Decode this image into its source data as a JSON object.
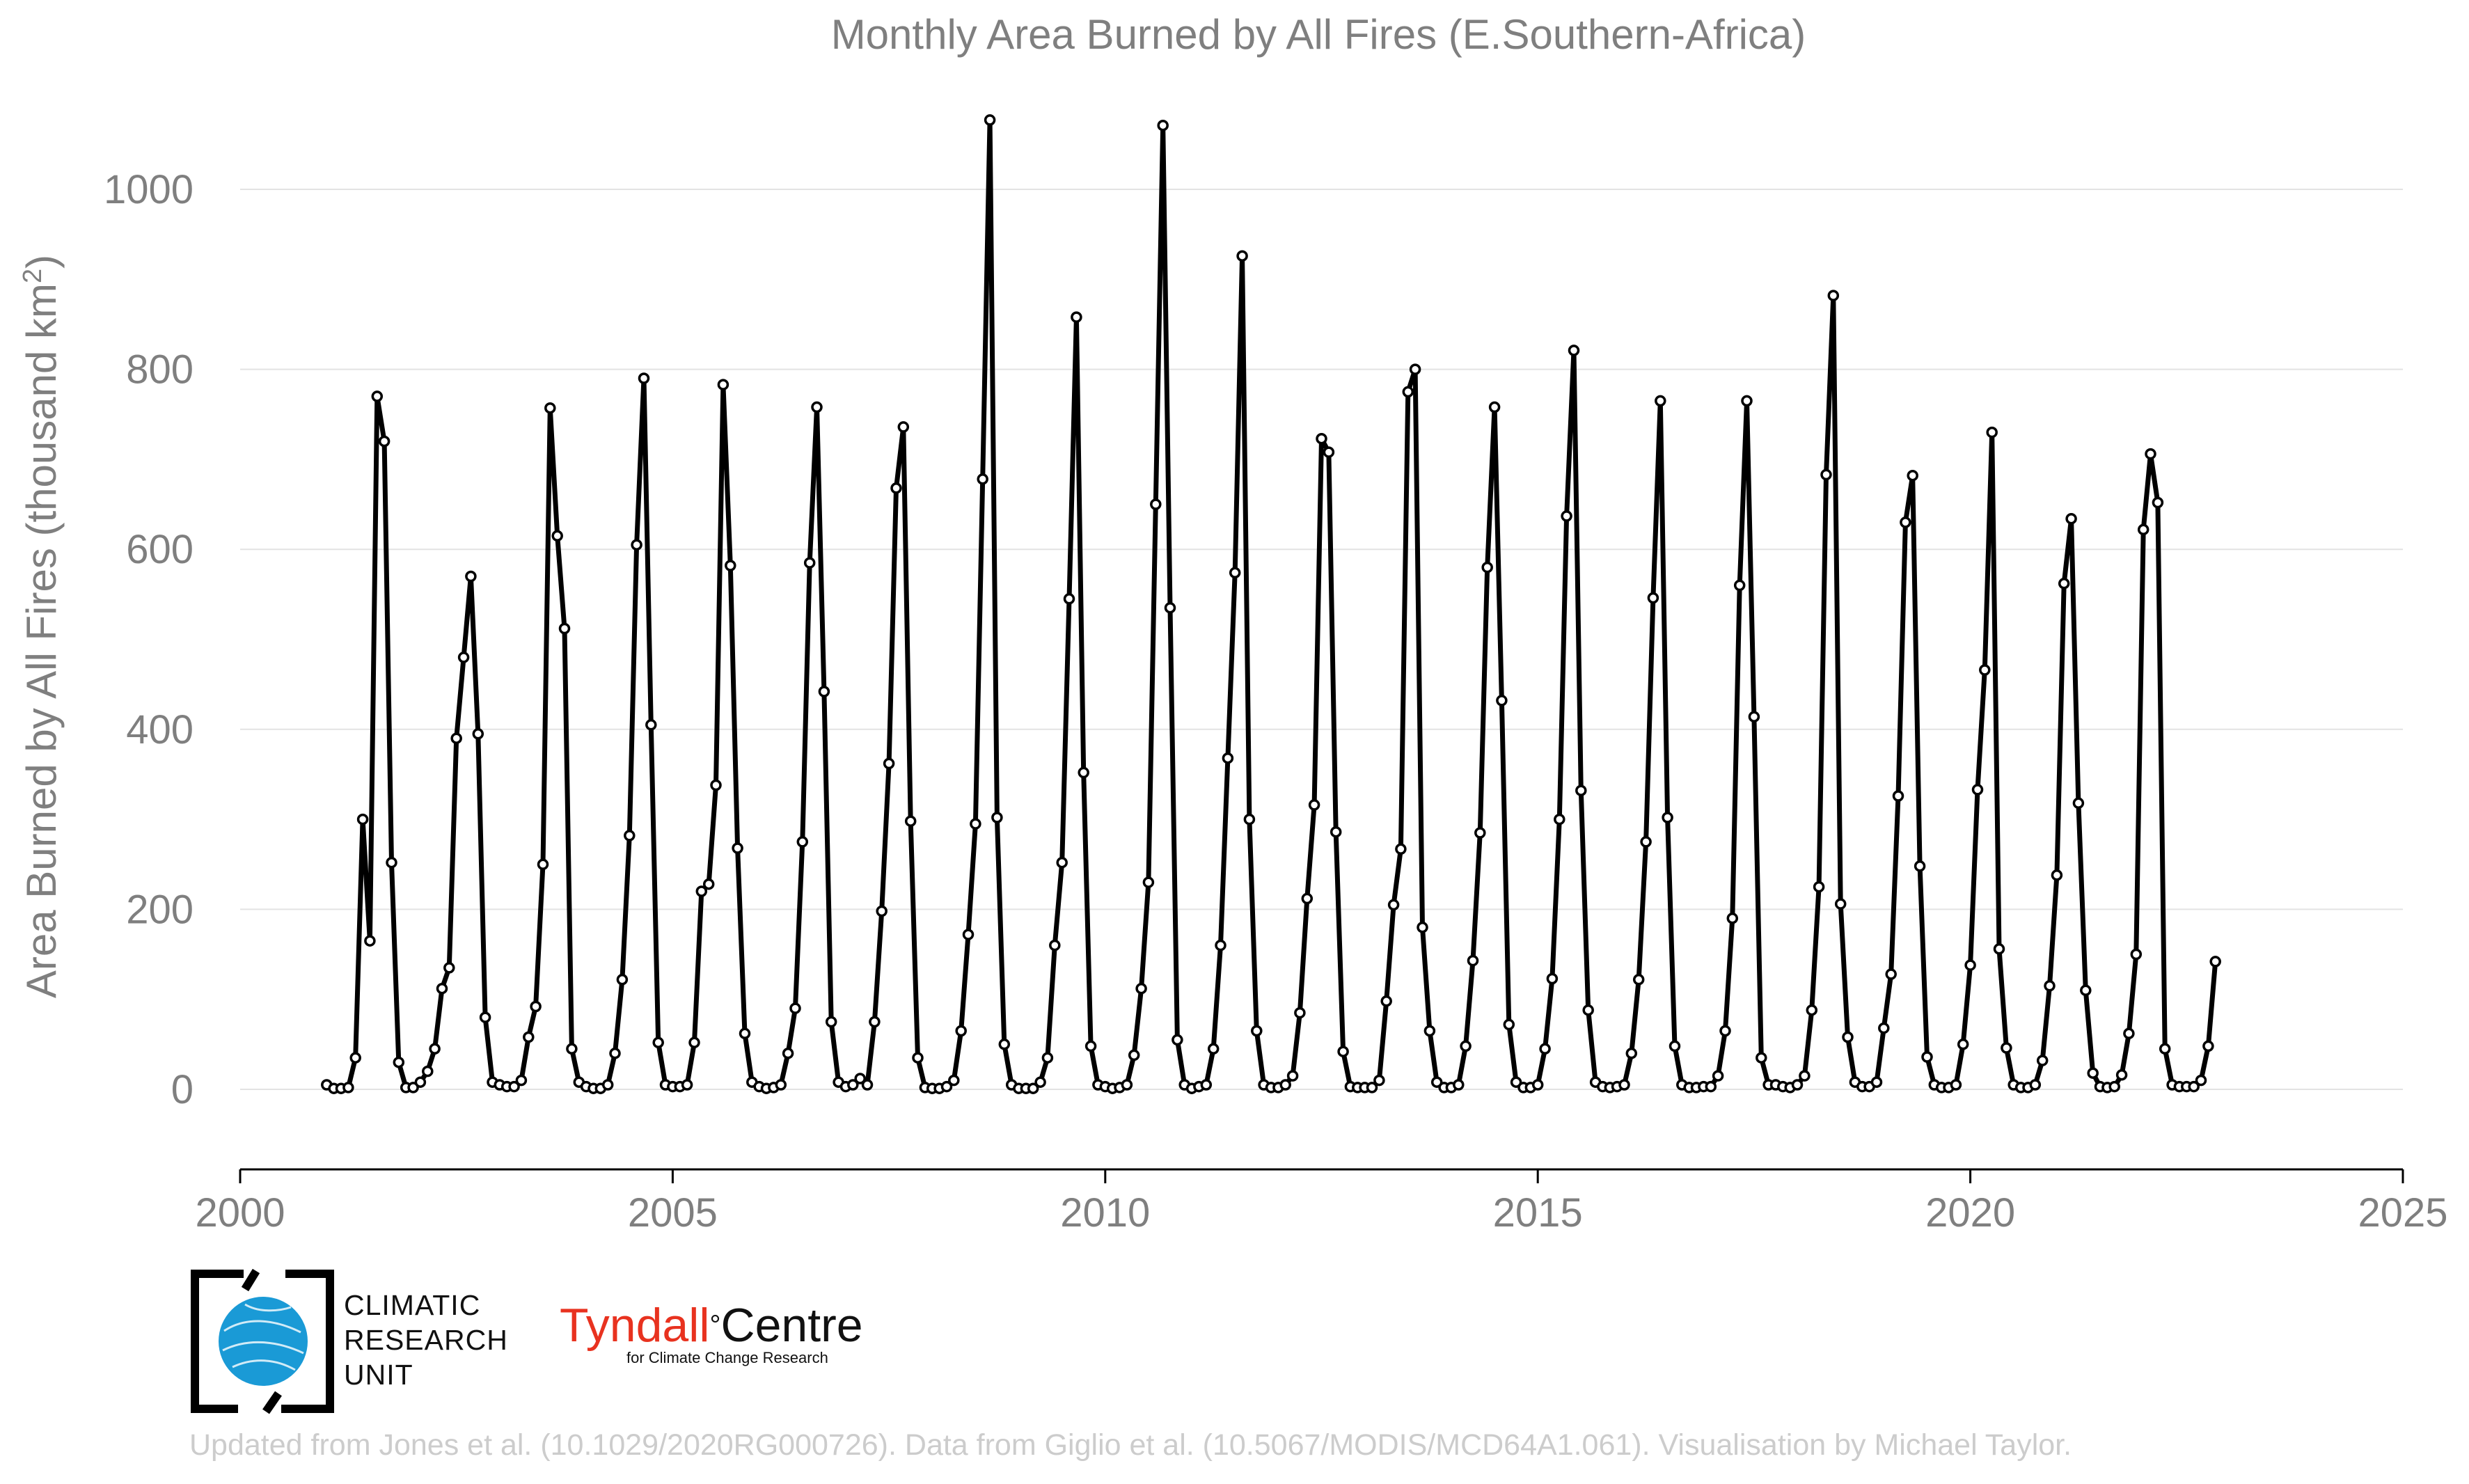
{
  "chart_data": {
    "type": "line",
    "title": "Monthly Area Burned by All Fires (E.Southern-Africa)",
    "ylabel_main": "Area Burned by All Fires (thousand km",
    "ylabel_sup": "2",
    "ylabel_end": ")",
    "xlabel": "",
    "xlim": [
      2000,
      2025
    ],
    "ylim": [
      -80,
      1100
    ],
    "xticks": [
      2000,
      2005,
      2010,
      2015,
      2020,
      2025
    ],
    "yticks": [
      0,
      200,
      400,
      600,
      800,
      1000
    ],
    "grid": "horizontal",
    "series": [
      {
        "color": "#000000",
        "start_year": 2001,
        "step": "monthly",
        "values": [
          5,
          1,
          1,
          2,
          35,
          300,
          165,
          770,
          720,
          252,
          30,
          2,
          2,
          8,
          20,
          45,
          112,
          135,
          390,
          480,
          570,
          395,
          80,
          8,
          5,
          3,
          3,
          10,
          58,
          92,
          250,
          757,
          615,
          512,
          45,
          8,
          3,
          1,
          1,
          5,
          40,
          122,
          282,
          605,
          790,
          405,
          52,
          5,
          3,
          3,
          5,
          52,
          220,
          228,
          338,
          783,
          582,
          268,
          62,
          8,
          3,
          1,
          2,
          5,
          40,
          90,
          275,
          585,
          758,
          442,
          75,
          8,
          3,
          5,
          12,
          5,
          75,
          198,
          362,
          668,
          736,
          298,
          35,
          2,
          1,
          1,
          3,
          10,
          65,
          172,
          295,
          678,
          1077,
          302,
          50,
          5,
          1,
          1,
          1,
          8,
          35,
          160,
          252,
          545,
          858,
          352,
          48,
          5,
          3,
          1,
          2,
          5,
          38,
          112,
          230,
          650,
          1071,
          535,
          55,
          5,
          1,
          3,
          5,
          45,
          160,
          368,
          574,
          926,
          300,
          65,
          5,
          2,
          2,
          5,
          15,
          85,
          212,
          316,
          723,
          708,
          286,
          42,
          3,
          2,
          2,
          2,
          10,
          98,
          205,
          267,
          775,
          800,
          180,
          65,
          8,
          2,
          2,
          5,
          48,
          143,
          285,
          580,
          758,
          432,
          72,
          8,
          2,
          2,
          5,
          45,
          123,
          300,
          637,
          821,
          332,
          88,
          8,
          3,
          2,
          3,
          5,
          40,
          122,
          275,
          546,
          765,
          302,
          48,
          5,
          2,
          2,
          3,
          3,
          15,
          65,
          190,
          560,
          765,
          414,
          35,
          5,
          5,
          3,
          2,
          5,
          15,
          88,
          225,
          683,
          882,
          206,
          58,
          8,
          3,
          3,
          8,
          68,
          128,
          326,
          630,
          682,
          248,
          36,
          5,
          2,
          2,
          5,
          50,
          138,
          333,
          466,
          730,
          156,
          46,
          5,
          2,
          2,
          5,
          32,
          115,
          238,
          562,
          634,
          318,
          110,
          18,
          3,
          2,
          3,
          16,
          62,
          150,
          622,
          706,
          652,
          45,
          5,
          3,
          3,
          3,
          10,
          48,
          142
        ]
      }
    ]
  },
  "logos": {
    "cru_line1": "CLIMATIC",
    "cru_line2": "RESEARCH",
    "cru_line3": "UNIT",
    "tyndall_part1": "Tyndall",
    "tyndall_degree": "°",
    "tyndall_part2": "Centre",
    "tyndall_tagline": "for Climate Change Research",
    "cru_blue": "#1a9ad6",
    "tyndall_red": "#e8321f"
  },
  "credit": "Updated from Jones et al. (10.1029/2020RG000726). Data from Giglio et al. (10.5067/MODIS/MCD64A1.061). Visualisation by Michael Taylor."
}
